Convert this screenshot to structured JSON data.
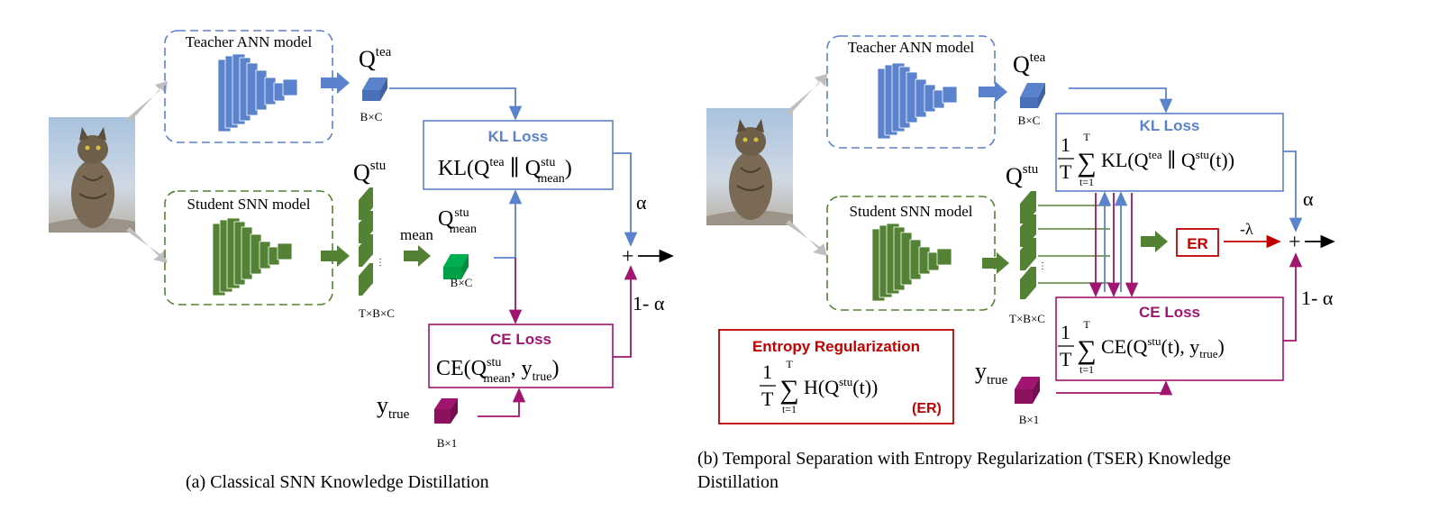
{
  "panel_a": {
    "teacher_label": "Teacher ANN model",
    "student_label": "Student SNN model",
    "q_tea": "Q",
    "q_tea_sup": "tea",
    "q_stu": "Q",
    "q_stu_sup": "stu",
    "bc_label_1": "B×C",
    "tbc_label": "T×B×C",
    "mean_label": "mean",
    "q_mean": "Q",
    "q_mean_sup": "stu",
    "q_mean_sub": "mean",
    "bc_label_2": "B×C",
    "kl_title": "KL Loss",
    "kl_formula": {
      "prefix": "KL(Q",
      "sup1": "tea",
      "mid": " ∥ Q",
      "sup2": "stu",
      "sub2": "mean",
      "suffix": ")"
    },
    "ce_title": "CE Loss",
    "ce_formula": {
      "prefix": "CE(Q",
      "sup1": "stu",
      "sub1": "mean",
      "mid": ", y",
      "sub2": "true",
      "suffix": ")"
    },
    "y_true": "y",
    "y_true_sub": "true",
    "b1_label": "B×1",
    "alpha": "α",
    "one_minus_alpha": "1- α",
    "plus": "+",
    "caption": "(a) Classical SNN Knowledge Distillation"
  },
  "panel_b": {
    "teacher_label": "Teacher ANN model",
    "student_label": "Student SNN model",
    "q_tea": "Q",
    "q_tea_sup": "tea",
    "q_stu": "Q",
    "q_stu_sup": "stu",
    "bc_label": "B×C",
    "tbc_label": "T×B×C",
    "kl_title": "KL Loss",
    "kl_formula": {
      "frac_num": "1",
      "frac_den": "T",
      "sum_top": "T",
      "sum_bottom": "t=1",
      "sum": "∑",
      "body": "KL(Q",
      "sup1": "tea",
      "mid": " ∥ Q",
      "sup2": "stu",
      "suffix": "(t))"
    },
    "ce_title": "CE Loss",
    "ce_formula": {
      "frac_num": "1",
      "frac_den": "T",
      "sum_top": "T",
      "sum_bottom": "t=1",
      "sum": "∑",
      "body": "CE(Q",
      "sup1": "stu",
      "mid": "(t), y",
      "sub2": "true",
      "suffix": ")"
    },
    "er_box_label": "ER",
    "minus_lambda": "-λ",
    "alpha": "α",
    "one_minus_alpha": "1- α",
    "plus": "+",
    "entropy_title": "Entropy Regularization",
    "entropy_formula": {
      "frac_num": "1",
      "frac_den": "T",
      "sum_top": "T",
      "sum_bottom": "t=1",
      "sum": "∑",
      "body": "H(Q",
      "sup1": "stu",
      "suffix": "(t))"
    },
    "entropy_tag": "(ER)",
    "y_true": "y",
    "y_true_sub": "true",
    "b1_label": "B×1",
    "caption_line1": "(b) Temporal Separation with Entropy Regularization (TSER) Knowledge",
    "caption_line2": "Distillation"
  },
  "colors": {
    "teacher_blue": "#5b82cc",
    "student_green": "#548235",
    "mean_green": "#00b050",
    "ce_magenta": "#a0156f",
    "er_red": "#c00000",
    "arrow_grey": "#bfbfbf"
  }
}
